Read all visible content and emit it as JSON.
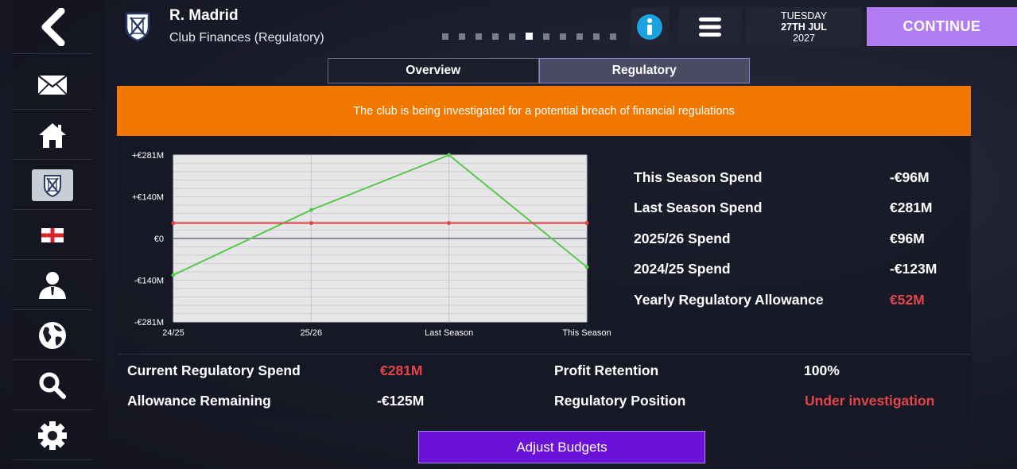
{
  "header": {
    "club_name": "R. Madrid",
    "page_subtitle": "Club Finances (Regulatory)",
    "date": {
      "day": "TUESDAY",
      "date": "27TH JUL",
      "year": "2027"
    },
    "continue_label": "CONTINUE",
    "page_dots": {
      "count": 11,
      "active_index": 5
    }
  },
  "sidebar": {
    "items": [
      "back-icon",
      "mail-icon",
      "home-icon",
      "club-crest-icon",
      "england-flag-icon",
      "manager-icon",
      "globe-icon",
      "search-icon",
      "settings-icon"
    ],
    "active_item": "club-crest-icon"
  },
  "tabs": [
    {
      "label": "Overview",
      "selected": false
    },
    {
      "label": "Regulatory",
      "selected": true
    }
  ],
  "banner": {
    "text": "The club is being investigated for a potential breach of financial regulations",
    "color": "#f07800"
  },
  "chart_data": {
    "type": "line",
    "categories": [
      "24/25",
      "25/26",
      "Last Season",
      "This Season"
    ],
    "y_tick_labels": [
      "+€281M",
      "+€140M",
      "€0",
      "-€140M",
      "-€281M"
    ],
    "ylim": [
      -281,
      281
    ],
    "series": [
      {
        "color": "#58c94a",
        "values": [
          -123,
          96,
          281,
          -96
        ]
      },
      {
        "color": "#e2454a",
        "values": [
          52,
          52,
          52,
          52
        ]
      }
    ],
    "zero_line_color": "#6b6b76",
    "grid": true
  },
  "stats": [
    {
      "label": "This Season Spend",
      "value": "-€96M",
      "highlight": false
    },
    {
      "label": "Last Season Spend",
      "value": "€281M",
      "highlight": false
    },
    {
      "label": "2025/26 Spend",
      "value": "€96M",
      "highlight": false
    },
    {
      "label": "2024/25 Spend",
      "value": "-€123M",
      "highlight": false
    },
    {
      "label": "Yearly Regulatory Allowance",
      "value": "€52M",
      "highlight": true
    }
  ],
  "summary": {
    "current_spend_label": "Current Regulatory Spend",
    "current_spend_value": "€281M",
    "allowance_remaining_label": "Allowance Remaining",
    "allowance_remaining_value": "-€125M",
    "profit_retention_label": "Profit Retention",
    "profit_retention_value": "100%",
    "regulatory_position_label": "Regulatory Position",
    "regulatory_position_value": "Under investigation"
  },
  "adjust_budgets_label": "Adjust Budgets",
  "colors": {
    "accent_purple": "#b27cf5",
    "button_purple": "#6a12d8",
    "warning_red": "#e2454a"
  }
}
